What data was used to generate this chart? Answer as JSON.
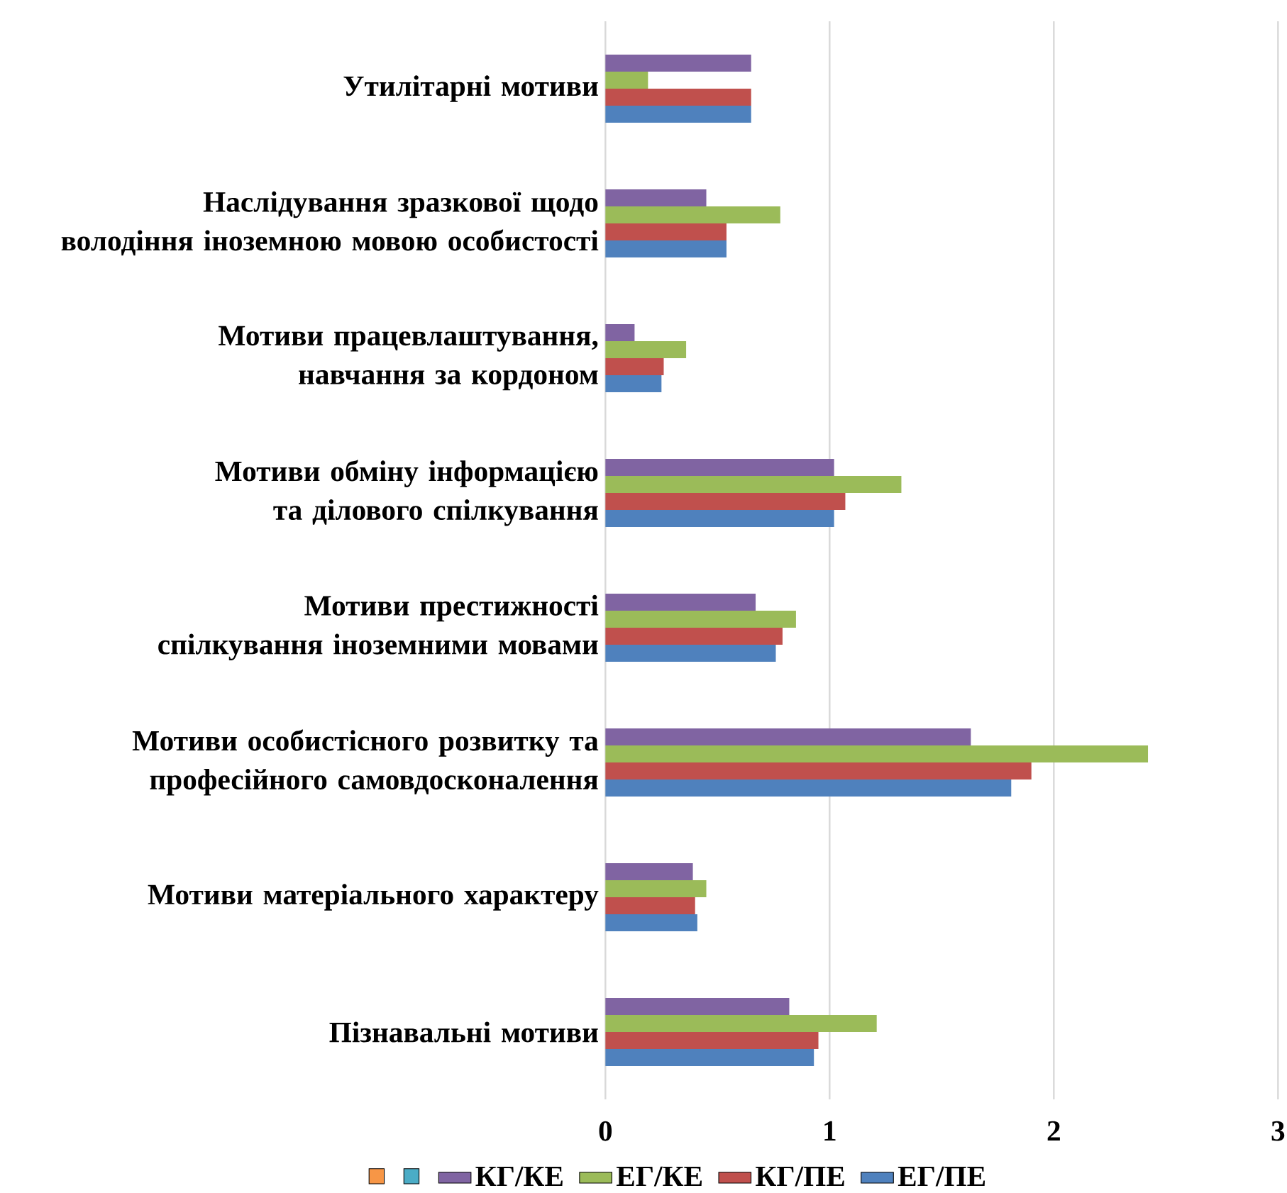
{
  "chart_data": {
    "type": "bar",
    "orientation": "horizontal",
    "categories": [
      "Утилітарні мотиви",
      "Наслідування зразкової щодо володіння іноземною мовою особистості",
      "Мотиви працевлаштування, навчання за кордоном",
      "Мотиви обміну інформацією та ділового спілкування",
      "Мотиви престижності спілкування іноземними мовами",
      "Мотиви особистісного розвитку та професійного самовдосконалення",
      "Мотиви матеріального характеру",
      "Пізнавальні мотиви"
    ],
    "series": [
      {
        "color": "#f79646",
        "values": [
          null,
          null,
          null,
          null,
          null,
          null,
          null,
          null
        ]
      },
      {
        "color": "#4bacc6",
        "values": [
          null,
          null,
          null,
          null,
          null,
          null,
          null,
          null
        ]
      },
      {
        "name": "КГ/КЕ",
        "color": "#8064a2",
        "values": [
          0.65,
          0.45,
          0.13,
          1.02,
          0.67,
          1.63,
          0.39,
          0.82
        ]
      },
      {
        "name": "ЕГ/КЕ",
        "color": "#9bbb59",
        "values": [
          0.19,
          0.78,
          0.36,
          1.32,
          0.85,
          2.42,
          0.45,
          1.21
        ]
      },
      {
        "name": "КГ/ПЕ",
        "color": "#c0504d",
        "values": [
          0.65,
          0.54,
          0.26,
          1.07,
          0.79,
          1.9,
          0.4,
          0.95
        ]
      },
      {
        "name": "ЕГ/ПЕ",
        "color": "#4f81bd",
        "values": [
          0.65,
          0.54,
          0.25,
          1.02,
          0.76,
          1.81,
          0.41,
          0.93
        ]
      }
    ],
    "xlim": [
      0,
      3
    ],
    "xticks": [
      0,
      1,
      2,
      3
    ],
    "grid": "x",
    "legend": "bottom"
  }
}
